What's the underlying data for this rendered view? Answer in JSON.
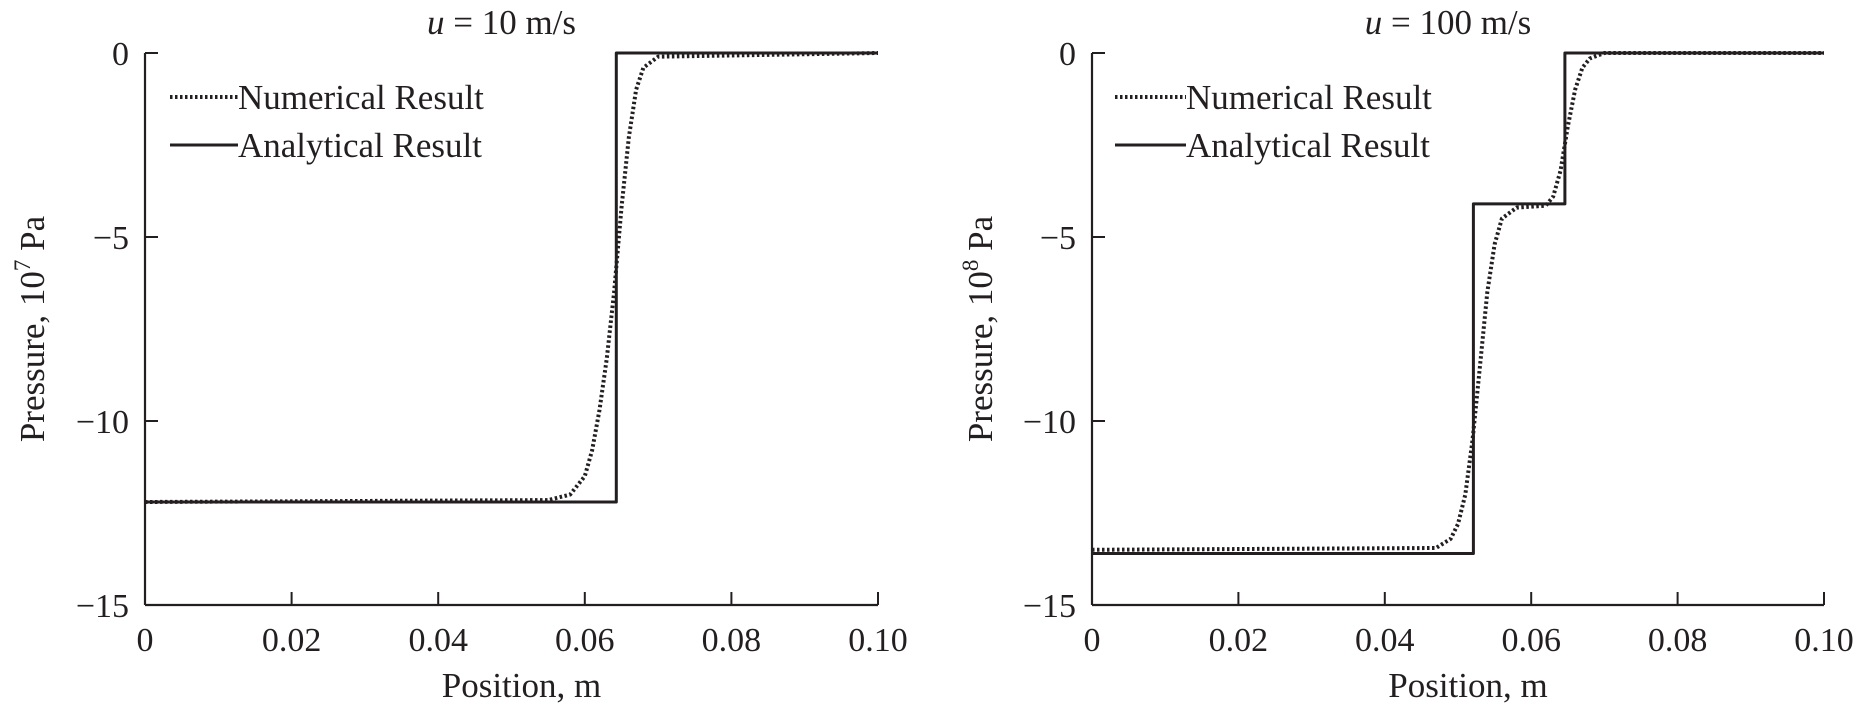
{
  "chart_data": [
    {
      "type": "line",
      "title_var": "u",
      "title_rest": " = 10 m/s",
      "xlabel": "Position, m",
      "ylabel_main": "Pressure,  10",
      "ylabel_exp": "7",
      "ylabel_unit": " Pa",
      "xlim": [
        0,
        0.1
      ],
      "ylim": [
        -15,
        0
      ],
      "xticks": [
        0,
        0.02,
        0.04,
        0.06,
        0.08,
        0.1
      ],
      "xtick_labels": [
        "0",
        "0.02",
        "0.04",
        "0.06",
        "0.08",
        "0.10"
      ],
      "yticks": [
        0,
        -5,
        -10,
        -15
      ],
      "ytick_labels": [
        "0",
        "−5",
        "−10",
        "−15"
      ],
      "grid": false,
      "legend_position": "top-left",
      "series": [
        {
          "name": "Numerical Result",
          "style": "dotted",
          "x": [
            0,
            0.055,
            0.058,
            0.06,
            0.061,
            0.062,
            0.063,
            0.064,
            0.065,
            0.066,
            0.067,
            0.068,
            0.07,
            0.1
          ],
          "y": [
            -12.2,
            -12.15,
            -12.0,
            -11.5,
            -10.8,
            -9.7,
            -8.3,
            -6.5,
            -4.2,
            -2.3,
            -1.0,
            -0.4,
            -0.1,
            0
          ]
        },
        {
          "name": "Analytical Result",
          "style": "solid",
          "x": [
            0,
            0.0643,
            0.0643,
            0.1
          ],
          "y": [
            -12.2,
            -12.2,
            0,
            0
          ]
        }
      ]
    },
    {
      "type": "line",
      "title_var": "u",
      "title_rest": " = 100 m/s",
      "xlabel": "Position, m",
      "ylabel_main": "Pressure,  10",
      "ylabel_exp": "8",
      "ylabel_unit": " Pa",
      "xlim": [
        0,
        0.1
      ],
      "ylim": [
        -15,
        0
      ],
      "xticks": [
        0,
        0.02,
        0.04,
        0.06,
        0.08,
        0.1
      ],
      "xtick_labels": [
        "0",
        "0.02",
        "0.04",
        "0.06",
        "0.08",
        "0.10"
      ],
      "yticks": [
        0,
        -5,
        -10,
        -15
      ],
      "ytick_labels": [
        "0",
        "−5",
        "−10",
        "−15"
      ],
      "grid": false,
      "legend_position": "top-left",
      "series": [
        {
          "name": "Numerical Result",
          "style": "dotted",
          "x": [
            0,
            0.047,
            0.049,
            0.05,
            0.051,
            0.052,
            0.053,
            0.054,
            0.055,
            0.056,
            0.058,
            0.062,
            0.063,
            0.064,
            0.065,
            0.066,
            0.067,
            0.068,
            0.07,
            0.1
          ],
          "y": [
            -13.5,
            -13.45,
            -13.2,
            -12.8,
            -12.0,
            -10.5,
            -8.5,
            -6.5,
            -5.2,
            -4.5,
            -4.2,
            -4.15,
            -3.9,
            -3.2,
            -2.0,
            -1.0,
            -0.4,
            -0.15,
            0,
            0
          ]
        },
        {
          "name": "Analytical Result",
          "style": "solid",
          "x": [
            0,
            0.0521,
            0.0521,
            0.0646,
            0.0646,
            0.1
          ],
          "y": [
            -13.6,
            -13.6,
            -4.1,
            -4.1,
            0,
            0
          ]
        }
      ]
    }
  ]
}
